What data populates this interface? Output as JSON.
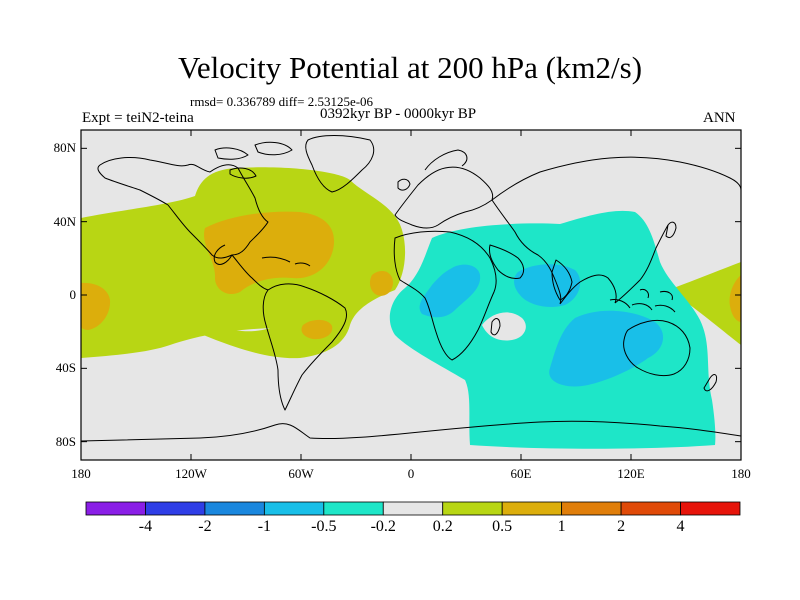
{
  "title": "Velocity Potential at 200 hPa (km2/s)",
  "stats": "rmsd= 0.336789 diff= 2.53125e-06",
  "experiment": "Expt = teiN2-teina",
  "period": "0392kyr BP - 0000kyr BP",
  "season": "ANN",
  "lat_ticks": [
    {
      "label": "80N",
      "value": 80
    },
    {
      "label": "40N",
      "value": 40
    },
    {
      "label": "0",
      "value": 0
    },
    {
      "label": "40S",
      "value": -40
    },
    {
      "label": "80S",
      "value": -80
    }
  ],
  "lon_ticks": [
    {
      "label": "180",
      "value": -180
    },
    {
      "label": "120W",
      "value": -120
    },
    {
      "label": "60W",
      "value": -60
    },
    {
      "label": "0",
      "value": 0
    },
    {
      "label": "60E",
      "value": 60
    },
    {
      "label": "120E",
      "value": 120
    },
    {
      "label": "180",
      "value": 180
    }
  ],
  "colorbar": {
    "colors": [
      "#8a1ee6",
      "#2f3ee6",
      "#1a87de",
      "#19bfe8",
      "#1ee6c8",
      "#e6e6e6",
      "#b8d614",
      "#dcae0c",
      "#e07e0a",
      "#e04a08",
      "#e6140a"
    ],
    "labels": [
      "-4",
      "-2",
      "-1",
      "-0.5",
      "-0.2",
      "0.2",
      "0.5",
      "1",
      "2",
      "4"
    ]
  },
  "map": {
    "lat_range": [
      -90,
      90
    ],
    "lon_range": [
      -180,
      180
    ],
    "background_color": "#e6e6e6",
    "coast_color": "#000000"
  }
}
